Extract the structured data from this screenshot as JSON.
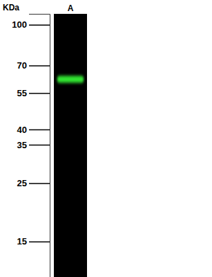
{
  "chart_data": {
    "type": "western_blot",
    "y_label": "KDa",
    "categories": [
      "A"
    ],
    "values": [
      62
    ],
    "color": "#33e633",
    "log": "y",
    "ylim": [
      11,
      110
    ],
    "yticks": [
      100,
      70,
      55,
      40,
      35,
      25,
      15
    ]
  }
}
